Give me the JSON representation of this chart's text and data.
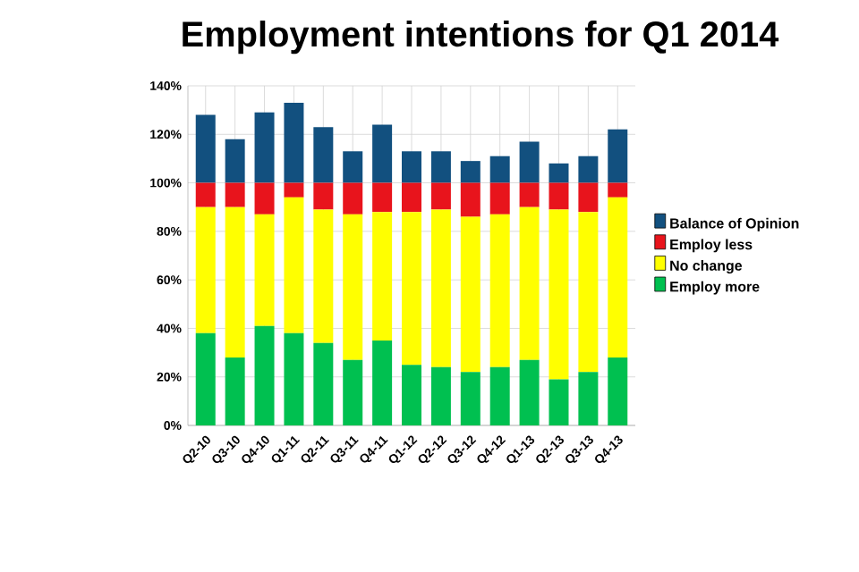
{
  "chart_data": {
    "type": "bar",
    "title": "Employment intentions for Q1 2014",
    "categories": [
      "Q2-10",
      "Q3-10",
      "Q4-10",
      "Q1-11",
      "Q2-11",
      "Q3-11",
      "Q4-11",
      "Q1-12",
      "Q2-12",
      "Q3-12",
      "Q4-12",
      "Q1-13",
      "Q2-13",
      "Q3-13",
      "Q4-13"
    ],
    "stacked": true,
    "series": [
      {
        "name": "Employ more",
        "color": "#00c050",
        "values": [
          38,
          28,
          41,
          38,
          34,
          27,
          35,
          25,
          24,
          22,
          24,
          27,
          19,
          22,
          28
        ]
      },
      {
        "name": "No change",
        "color": "#ffff00",
        "values": [
          52,
          62,
          46,
          56,
          55,
          60,
          53,
          63,
          65,
          64,
          63,
          63,
          70,
          66,
          66
        ]
      },
      {
        "name": "Employ less",
        "color": "#e8141c",
        "values": [
          10,
          10,
          13,
          6,
          11,
          13,
          12,
          12,
          11,
          14,
          13,
          10,
          11,
          12,
          6
        ]
      },
      {
        "name": "Balance of Opinion",
        "color": "#12507f",
        "values": [
          28,
          18,
          29,
          33,
          23,
          13,
          24,
          13,
          13,
          9,
          11,
          17,
          8,
          11,
          22
        ]
      }
    ],
    "ylim": [
      0,
      140
    ],
    "yticks": [
      {
        "value": 0,
        "label": "0%"
      },
      {
        "value": 20,
        "label": "20%"
      },
      {
        "value": 40,
        "label": "40%"
      },
      {
        "value": 60,
        "label": "60%"
      },
      {
        "value": 80,
        "label": "80%"
      },
      {
        "value": 100,
        "label": "100%"
      },
      {
        "value": 120,
        "label": "120%"
      },
      {
        "value": 140,
        "label": "140%"
      }
    ],
    "grid": true,
    "legend": "right"
  }
}
